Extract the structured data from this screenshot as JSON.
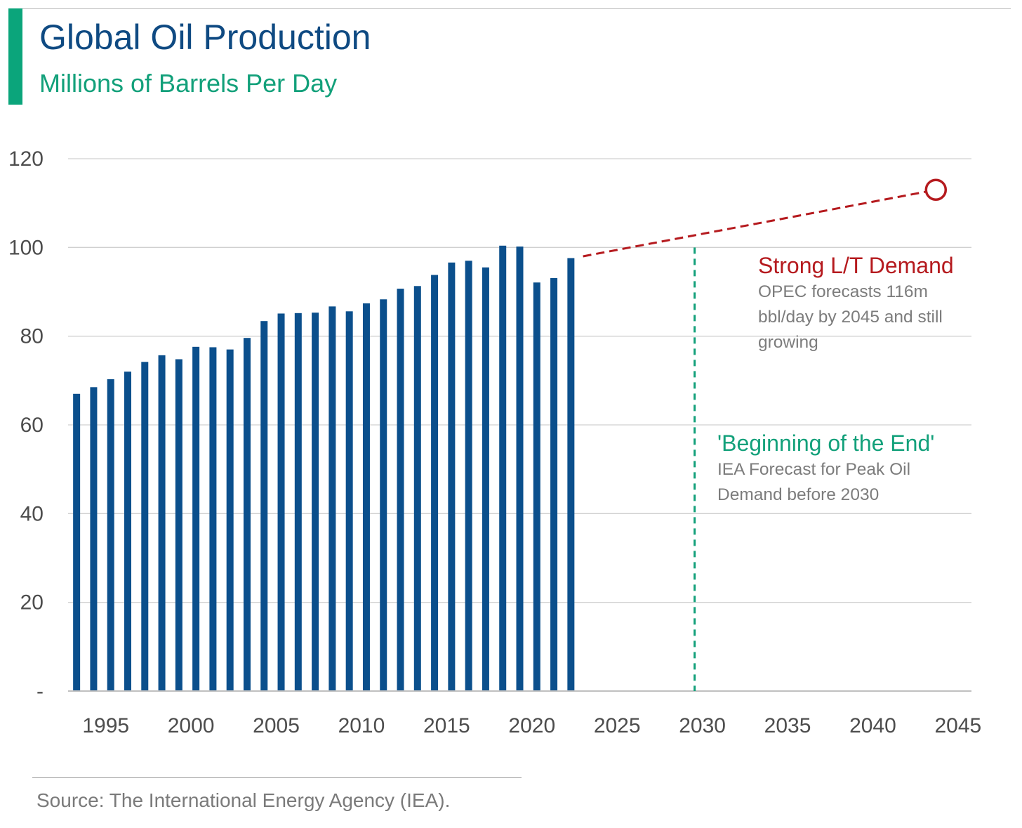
{
  "header": {
    "title": "Global Oil Production",
    "subtitle": "Millions of Barrels Per Day"
  },
  "annotations": {
    "opec": {
      "title": "Strong L/T Demand",
      "lines": [
        "OPEC forecasts 116m",
        "bbl/day by 2045 and still",
        "growing"
      ]
    },
    "iea": {
      "title": "'Beginning of the End'",
      "lines": [
        "IEA Forecast for Peak Oil",
        "Demand before 2030"
      ]
    }
  },
  "footer": {
    "source": "Source: The International Energy Agency (IEA)."
  },
  "colors": {
    "bars": "#0b4f8c",
    "forecast": "#b51a1e",
    "peak_line": "#12a07a",
    "grid": "#d0d0d0",
    "axis": "#c0c0c0",
    "tick_text": "#4d4d4d"
  },
  "chart_data": {
    "type": "bar",
    "title": "Global Oil Production",
    "subtitle": "Millions of Barrels Per Day",
    "x": [
      1993,
      1994,
      1995,
      1996,
      1997,
      1998,
      1999,
      2000,
      2001,
      2002,
      2003,
      2004,
      2005,
      2006,
      2007,
      2008,
      2009,
      2010,
      2011,
      2012,
      2013,
      2014,
      2015,
      2016,
      2017,
      2018,
      2019,
      2020,
      2021,
      2022
    ],
    "values": [
      67.0,
      68.5,
      70.3,
      72.0,
      74.2,
      75.7,
      74.8,
      77.6,
      77.5,
      77.0,
      79.6,
      83.4,
      85.1,
      85.2,
      85.3,
      86.7,
      85.6,
      87.4,
      88.3,
      90.7,
      91.3,
      93.8,
      96.6,
      97.0,
      95.5,
      100.4,
      100.2,
      92.1,
      93.1,
      97.6
    ],
    "x_ticks": [
      1995,
      2000,
      2005,
      2010,
      2015,
      2020,
      2025,
      2030,
      2035,
      2040,
      2045
    ],
    "y_ticks": [
      0,
      20,
      40,
      60,
      80,
      100,
      120
    ],
    "y_tick_labels": [
      "-",
      "20",
      "40",
      "60",
      "80",
      "100",
      "120"
    ],
    "ylim": [
      0,
      120
    ],
    "xlim": [
      1992.5,
      2045.5
    ],
    "grid": true,
    "forecast": {
      "start": {
        "x": 2023,
        "y": 98
      },
      "end": {
        "x": 2043.7,
        "y": 113
      },
      "style": "dashed",
      "marker": "open-circle"
    },
    "peak_marker": {
      "x": 2030,
      "style": "dashed-vertical"
    }
  }
}
